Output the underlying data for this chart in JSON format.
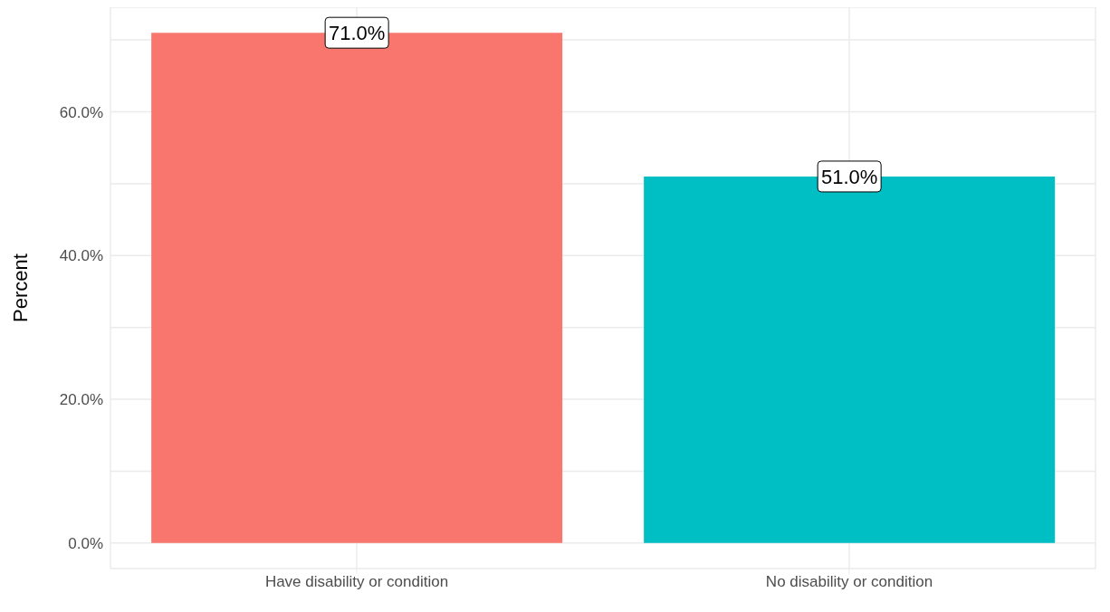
{
  "chart_data": {
    "type": "bar",
    "ylabel": "Percent",
    "categories": [
      "Have disability or condition",
      "No disability or condition"
    ],
    "values": [
      71.0,
      51.0
    ],
    "colors": [
      "#f8766d",
      "#00bfc4"
    ],
    "value_labels": [
      "71.0%",
      "51.0%"
    ],
    "ylim": [
      -3.55,
      74.55
    ],
    "yticks": [
      {
        "value": 0,
        "label": "0.0%"
      },
      {
        "value": 10,
        "label": null
      },
      {
        "value": 20,
        "label": "20.0%"
      },
      {
        "value": 30,
        "label": null
      },
      {
        "value": 40,
        "label": "40.0%"
      },
      {
        "value": 50,
        "label": null
      },
      {
        "value": 60,
        "label": "60.0%"
      },
      {
        "value": 70,
        "label": null
      }
    ],
    "grid": true,
    "legend": false
  }
}
